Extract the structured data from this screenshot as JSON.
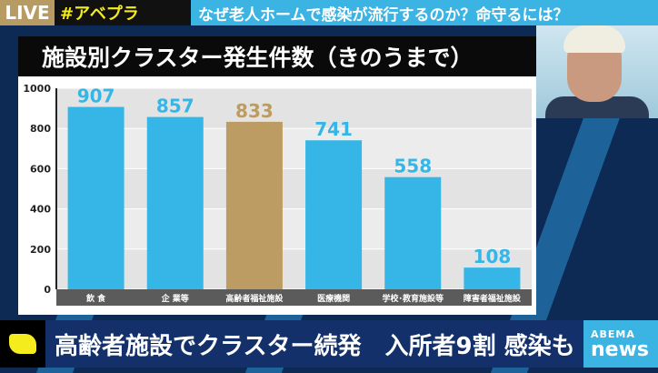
{
  "topbar": {
    "live": "LIVE",
    "hashtag": "#アベプラ",
    "headline": "なぜ老人ホームで感染が流行するのか？命守るには？"
  },
  "caption": "高齢者施設でクラスター続発　入所者9割 感染も",
  "logo": {
    "top": "ABEMA",
    "bottom": "news"
  },
  "chart_data": {
    "type": "bar",
    "title": "施設別クラスター発生件数（きのうまで）",
    "categories": [
      "飲 食",
      "企 業等",
      "高齢者福祉施設",
      "医療機関",
      "学校･教育施設等",
      "障害者福祉施設"
    ],
    "values": [
      907,
      857,
      833,
      741,
      558,
      108
    ],
    "highlight_index": 2,
    "colors": {
      "bar": "#36b6e6",
      "highlight": "#bd9c63",
      "label_dark": "#bd9c63"
    },
    "ylim": [
      0,
      1000
    ],
    "yticks": [
      0,
      200,
      400,
      600,
      800,
      1000
    ],
    "xlabel": "",
    "ylabel": "",
    "grid": true,
    "legend": "none"
  }
}
